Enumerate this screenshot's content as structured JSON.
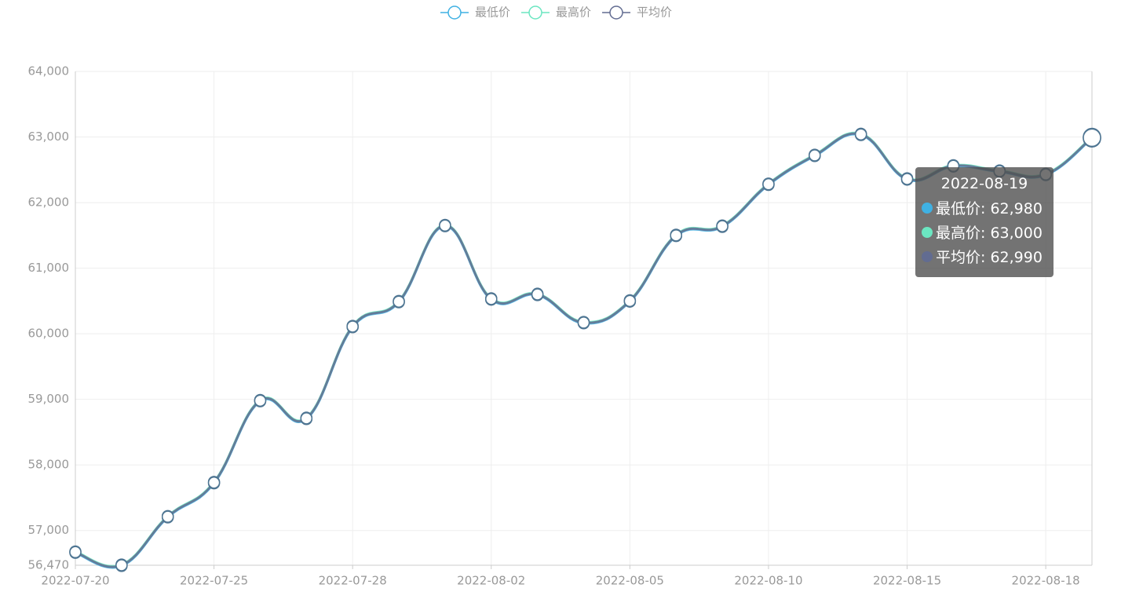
{
  "chart_data": {
    "type": "line",
    "categories": [
      "2022-07-20",
      null,
      null,
      "2022-07-25",
      null,
      null,
      "2022-07-28",
      null,
      null,
      "2022-08-02",
      null,
      null,
      "2022-08-05",
      null,
      null,
      "2022-08-10",
      null,
      null,
      "2022-08-15",
      null,
      null,
      "2022-08-18",
      null
    ],
    "series": [
      {
        "name": "最低价",
        "color": "#3fb1e3",
        "values": [
          56660,
          56460,
          57200,
          57720,
          58970,
          58700,
          60100,
          60480,
          61640,
          60520,
          60590,
          60160,
          60490,
          61490,
          61630,
          62270,
          62710,
          63030,
          62350,
          62550,
          62470,
          62420,
          62980
        ]
      },
      {
        "name": "最高价",
        "color": "#6be6c1",
        "values": [
          56680,
          56480,
          57220,
          57740,
          58990,
          58720,
          60120,
          60500,
          61660,
          60540,
          60610,
          60180,
          60510,
          61510,
          61650,
          62290,
          62730,
          63050,
          62370,
          62570,
          62490,
          62440,
          63000
        ]
      },
      {
        "name": "平均价",
        "color": "#626c91",
        "values": [
          56670,
          56470,
          57210,
          57730,
          58980,
          58710,
          60110,
          60490,
          61650,
          60530,
          60600,
          60170,
          60500,
          61500,
          61640,
          62280,
          62720,
          63040,
          62360,
          62560,
          62480,
          62430,
          62990
        ]
      }
    ],
    "ylim": [
      56470,
      64000
    ],
    "yticks": [
      {
        "value": 56470,
        "label": "56,470"
      },
      {
        "value": 57000,
        "label": "57,000"
      },
      {
        "value": 58000,
        "label": "58,000"
      },
      {
        "value": 59000,
        "label": "59,000"
      },
      {
        "value": 60000,
        "label": "60,000"
      },
      {
        "value": 61000,
        "label": "61,000"
      },
      {
        "value": 62000,
        "label": "62,000"
      },
      {
        "value": 63000,
        "label": "63,000"
      },
      {
        "value": 64000,
        "label": "64,000"
      }
    ],
    "grid": true,
    "legend": "top",
    "tooltip": {
      "title": "2022-08-19",
      "items": [
        "最低价: 62,980",
        "最高价: 63,000",
        "平均价: 62,990"
      ]
    }
  }
}
